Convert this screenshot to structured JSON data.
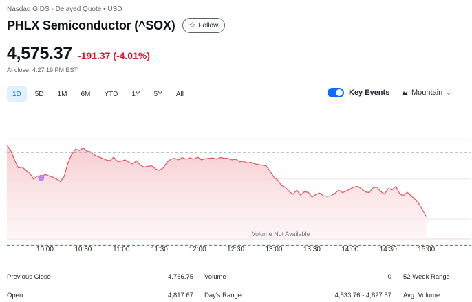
{
  "header": {
    "exchange_line": "Nasdaq GIDS - Delayed Quote • USD",
    "title": "PHLX Semiconductor (^SOX)",
    "follow_label": "Follow"
  },
  "quote": {
    "price": "4,575.37",
    "change": "-191.37 (-4.01%)",
    "close_time": "At close: 4:27:19 PM EST"
  },
  "ranges": [
    {
      "label": "1D",
      "active": true
    },
    {
      "label": "5D",
      "active": false
    },
    {
      "label": "1M",
      "active": false
    },
    {
      "label": "6M",
      "active": false
    },
    {
      "label": "YTD",
      "active": false
    },
    {
      "label": "1Y",
      "active": false
    },
    {
      "label": "5Y",
      "active": false
    },
    {
      "label": "All",
      "active": false
    }
  ],
  "controls": {
    "key_events_label": "Key Events",
    "key_events_on": true,
    "chart_type_label": "Mountain"
  },
  "colors": {
    "down": "#eb0f29",
    "accent": "#0f69ff",
    "line": "#e8505b",
    "event_marker": "#b48be8"
  },
  "chart_data": {
    "type": "area",
    "x_ticks": [
      "10:00",
      "10:30",
      "11:00",
      "11:30",
      "12:00",
      "12:30",
      "13:00",
      "13:30",
      "14:00",
      "14:30",
      "15:00"
    ],
    "volume_note": "Volume Not Available",
    "series": [
      {
        "x": [
          9.5,
          9.55,
          9.6,
          9.65,
          9.7,
          9.75,
          9.8,
          9.85,
          9.9,
          9.95,
          10.0,
          10.05,
          10.1,
          10.15,
          10.2,
          10.25,
          10.3,
          10.35,
          10.4,
          10.45,
          10.5,
          10.55,
          10.6,
          10.65,
          10.7,
          10.75,
          10.8,
          10.85,
          10.9,
          10.95,
          11.0,
          11.05,
          11.1,
          11.15,
          11.2,
          11.25,
          11.3,
          11.35,
          11.4,
          11.45,
          11.5,
          11.55,
          11.6,
          11.65,
          11.7,
          11.75,
          11.8,
          11.85,
          11.9,
          11.95,
          12.0,
          12.05,
          12.1,
          12.15,
          12.2,
          12.25,
          12.3,
          12.35,
          12.4,
          12.45,
          12.5,
          12.55,
          12.6,
          12.65,
          12.7,
          12.75,
          12.8,
          12.85,
          12.9,
          12.95,
          13.0,
          13.05,
          13.1,
          13.15,
          13.2,
          13.25,
          13.3,
          13.35,
          13.4,
          13.45,
          13.5,
          13.55,
          13.6,
          13.65,
          13.7,
          13.75,
          13.8,
          13.85,
          13.9,
          13.95,
          14.0,
          14.05,
          14.1,
          14.15,
          14.2,
          14.25,
          14.3,
          14.35,
          14.4,
          14.45,
          14.5,
          14.55,
          14.6,
          14.65,
          14.7,
          14.75,
          14.8,
          14.85,
          14.9,
          14.95,
          15.0
        ],
        "values": [
          4785,
          4772,
          4748,
          4728,
          4730,
          4722,
          4715,
          4700,
          4708,
          4703,
          4712,
          4708,
          4705,
          4700,
          4694,
          4706,
          4740,
          4762,
          4775,
          4772,
          4778,
          4770,
          4768,
          4760,
          4756,
          4752,
          4748,
          4746,
          4755,
          4744,
          4745,
          4748,
          4742,
          4738,
          4746,
          4735,
          4730,
          4732,
          4733,
          4725,
          4722,
          4728,
          4742,
          4750,
          4752,
          4748,
          4754,
          4750,
          4753,
          4750,
          4755,
          4748,
          4751,
          4752,
          4753,
          4750,
          4754,
          4752,
          4752,
          4748,
          4750,
          4743,
          4745,
          4740,
          4742,
          4738,
          4736,
          4735,
          4733,
          4720,
          4705,
          4698,
          4684,
          4680,
          4669,
          4662,
          4672,
          4660,
          4668,
          4667,
          4655,
          4661,
          4665,
          4658,
          4657,
          4658,
          4664,
          4672,
          4666,
          4670,
          4675,
          4680,
          4682,
          4675,
          4668,
          4666,
          4678,
          4680,
          4669,
          4662,
          4676,
          4673,
          4682,
          4663,
          4658,
          4667,
          4658,
          4649,
          4639,
          4622,
          4606
        ]
      }
    ],
    "previous_close": 4766.75,
    "open": 4817.67,
    "day_range": [
      4533.76,
      4827.57
    ],
    "ylim": [
      4550,
      4860
    ],
    "event_marker_x": 9.95
  },
  "stats": {
    "previous_close_label": "Previous Close",
    "previous_close_value": "4,766.75",
    "open_label": "Open",
    "open_value": "4,817.67",
    "volume_label": "Volume",
    "volume_value": "0",
    "days_range_label": "Day's Range",
    "days_range_value": "4,533.76 - 4,827.57",
    "week52_label": "52 Week Range",
    "avg_volume_label": "Avg. Volume"
  }
}
